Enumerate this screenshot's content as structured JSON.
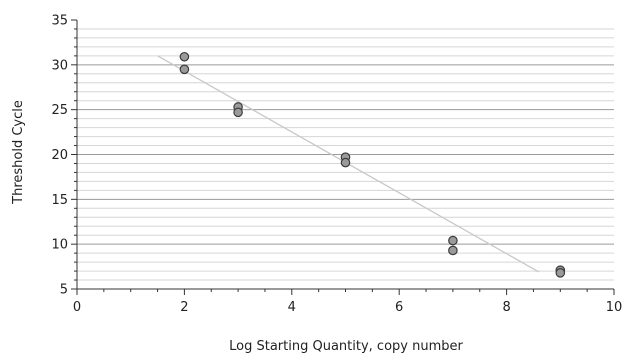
{
  "chart_data": {
    "type": "scatter",
    "title": "",
    "xlabel": "Log Starting Quantity, copy number",
    "ylabel": "Threshold Cycle",
    "xlim": [
      0,
      10
    ],
    "ylim": [
      5,
      35
    ],
    "x_ticks": [
      "0",
      "2",
      "4",
      "6",
      "8",
      "10"
    ],
    "y_ticks": [
      "5",
      "10",
      "15",
      "20",
      "25",
      "30",
      "35"
    ],
    "grid": true,
    "legend": "none",
    "series": [
      {
        "points": [
          {
            "x": 2,
            "y": 30.9
          },
          {
            "x": 2,
            "y": 29.5
          },
          {
            "x": 3,
            "y": 25.3
          },
          {
            "x": 3,
            "y": 24.7
          },
          {
            "x": 5,
            "y": 19.7
          },
          {
            "x": 5,
            "y": 19.1
          },
          {
            "x": 7,
            "y": 10.4
          },
          {
            "x": 7,
            "y": 9.3
          },
          {
            "x": 9,
            "y": 7.1
          },
          {
            "x": 9,
            "y": 6.8
          }
        ]
      }
    ],
    "trendline": {
      "x": [
        1.5,
        8.6
      ],
      "y": [
        31.0,
        6.9
      ]
    },
    "colors": {
      "point_fill": "#9a9a9a",
      "point_stroke": "#3c3c3c",
      "trendline": "#c8c8c8",
      "grid_major": "#9a9a9a",
      "grid_minor": "#d6d6d6",
      "axis": "#333333"
    }
  }
}
